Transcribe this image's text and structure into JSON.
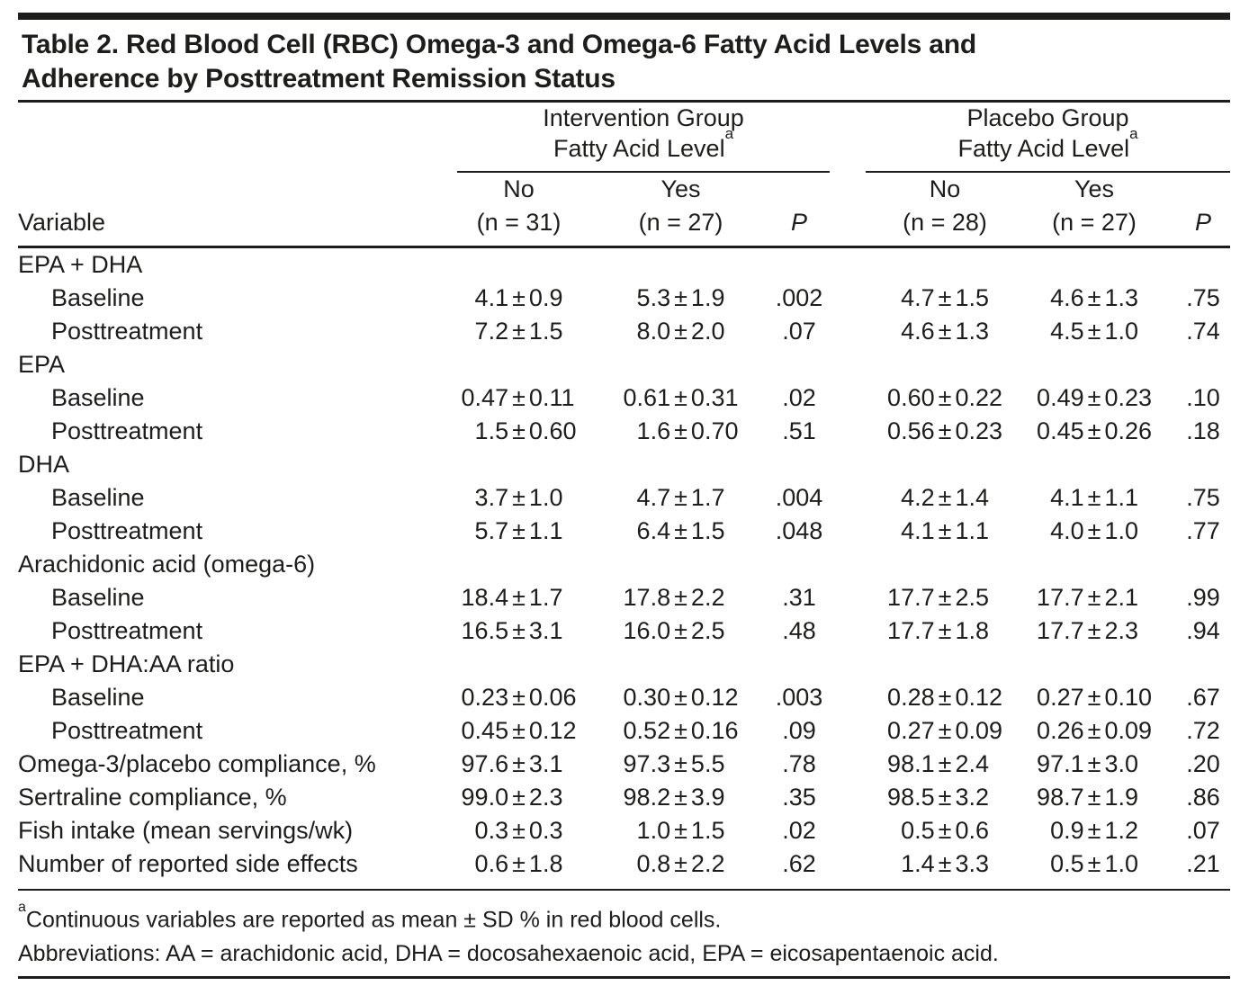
{
  "title": {
    "line1": "Table 2. Red Blood Cell (RBC) Omega-3 and Omega-6 Fatty Acid Levels and",
    "line2": "Adherence by Posttreatment Remission Status"
  },
  "header": {
    "variable_label": "Variable",
    "groups": [
      {
        "line1": "Intervention Group",
        "line2": "Fatty Acid Level",
        "footnote_marker": "a",
        "no_top": "No",
        "no_bottom": "(n = 31)",
        "yes_top": "Yes",
        "yes_bottom": "(n = 27)",
        "p_label": "P"
      },
      {
        "line1": "Placebo Group",
        "line2": "Fatty Acid Level",
        "footnote_marker": "a",
        "no_top": "No",
        "no_bottom": "(n = 28)",
        "yes_top": "Yes",
        "yes_bottom": "(n = 27)",
        "p_label": "P"
      }
    ]
  },
  "rows": [
    {
      "label": "EPA + DHA",
      "cells": []
    },
    {
      "label": "Baseline",
      "cells": [
        "4.1±0.9",
        "5.3±1.9",
        ".002",
        "4.7±1.5",
        "4.6±1.3",
        ".75"
      ]
    },
    {
      "label": "Posttreatment",
      "cells": [
        "7.2±1.5",
        "8.0±2.0",
        ".07",
        "4.6±1.3",
        "4.5±1.0",
        ".74"
      ]
    },
    {
      "label": "EPA",
      "cells": []
    },
    {
      "label": "Baseline",
      "cells": [
        "0.47±0.11",
        "0.61±0.31",
        ".02",
        "0.60±0.22",
        "0.49±0.23",
        ".10"
      ]
    },
    {
      "label": "Posttreatment",
      "cells": [
        "1.5±0.60",
        "1.6±0.70",
        ".51",
        "0.56±0.23",
        "0.45±0.26",
        ".18"
      ]
    },
    {
      "label": "DHA",
      "cells": []
    },
    {
      "label": "Baseline",
      "cells": [
        "3.7±1.0",
        "4.7±1.7",
        ".004",
        "4.2±1.4",
        "4.1±1.1",
        ".75"
      ]
    },
    {
      "label": "Posttreatment",
      "cells": [
        "5.7±1.1",
        "6.4±1.5",
        ".048",
        "4.1±1.1",
        "4.0±1.0",
        ".77"
      ]
    },
    {
      "label": "Arachidonic acid (omega-6)",
      "cells": []
    },
    {
      "label": "Baseline",
      "cells": [
        "18.4±1.7",
        "17.8±2.2",
        ".31",
        "17.7±2.5",
        "17.7±2.1",
        ".99"
      ]
    },
    {
      "label": "Posttreatment",
      "cells": [
        "16.5±3.1",
        "16.0±2.5",
        ".48",
        "17.7±1.8",
        "17.7±2.3",
        ".94"
      ]
    },
    {
      "label": "EPA + DHA:AA ratio",
      "cells": []
    },
    {
      "label": "Baseline",
      "cells": [
        "0.23±0.06",
        "0.30±0.12",
        ".003",
        "0.28±0.12",
        "0.27±0.10",
        ".67"
      ]
    },
    {
      "label": "Posttreatment",
      "cells": [
        "0.45±0.12",
        "0.52±0.16",
        ".09",
        "0.27±0.09",
        "0.26±0.09",
        ".72"
      ]
    },
    {
      "label": "Omega-3/placebo compliance, %",
      "cells": [
        "97.6±3.1",
        "97.3±5.5",
        ".78",
        "98.1±2.4",
        "97.1±3.0",
        ".20"
      ]
    },
    {
      "label": "Sertraline compliance, %",
      "cells": [
        "99.0±2.3",
        "98.2±3.9",
        ".35",
        "98.5±3.2",
        "98.7±1.9",
        ".86"
      ]
    },
    {
      "label": "Fish intake (mean servings/wk)",
      "cells": [
        "0.3±0.3",
        "1.0±1.5",
        ".02",
        "0.5±0.6",
        "0.9±1.2",
        ".07"
      ]
    },
    {
      "label": "Number of reported side effects",
      "cells": [
        "0.6±1.8",
        "0.8±2.2",
        ".62",
        "1.4±3.3",
        "0.5±1.0",
        ".21"
      ]
    }
  ],
  "footnotes": {
    "note_a_marker": "a",
    "note_a_text": "Continuous variables are reported as mean ± SD % in red blood cells.",
    "abbreviations": "Abbreviations: AA = arachidonic acid, DHA = docosahexaenoic acid, EPA = eicosapentaenoic acid."
  },
  "colors": {
    "text": "#1d1d1b",
    "rule": "#1d1d1b",
    "background": "#ffffff"
  }
}
